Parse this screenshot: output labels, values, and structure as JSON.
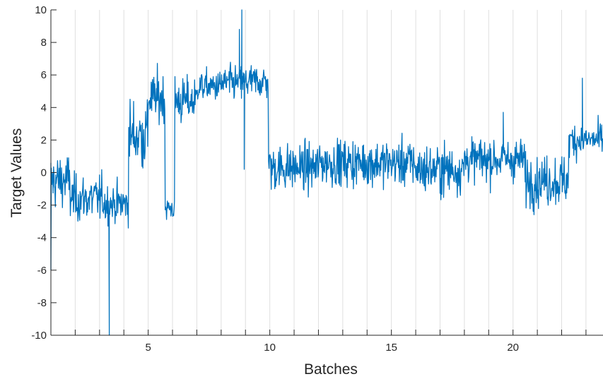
{
  "chart_data": {
    "type": "line",
    "xlabel": "Batches",
    "ylabel": "Target Values",
    "xlim": [
      1,
      23.7
    ],
    "ylim": [
      -10,
      10
    ],
    "xticks": [
      5,
      10,
      15,
      20
    ],
    "yticks": [
      -10,
      -8,
      -6,
      -4,
      -2,
      0,
      2,
      4,
      6,
      8,
      10
    ],
    "batch_boundaries": [
      2,
      3,
      4,
      5,
      6,
      7,
      8,
      9,
      10,
      11,
      12,
      13,
      14,
      15,
      16,
      17,
      18,
      19,
      20,
      21,
      22,
      23
    ],
    "grid": "vertical lines at batch boundaries",
    "line_color": "#0072BD",
    "series": [
      {
        "segments": [
          {
            "x_start": 1.0,
            "x_end": 1.8,
            "mean": -0.5,
            "noise": 1.4
          },
          {
            "x_start": 1.8,
            "x_end": 3.2,
            "mean": -1.6,
            "noise": 1.2
          },
          {
            "x_start": 3.2,
            "x_end": 4.2,
            "mean": -1.9,
            "noise": 1.0
          },
          {
            "x_start": 4.2,
            "x_end": 5.0,
            "mean": 2.3,
            "noise": 1.8
          },
          {
            "x_start": 5.0,
            "x_end": 5.7,
            "mean": 4.6,
            "noise": 1.3
          },
          {
            "x_start": 5.7,
            "x_end": 6.1,
            "mean": -2.2,
            "noise": 0.7
          },
          {
            "x_start": 6.1,
            "x_end": 7.0,
            "mean": 4.4,
            "noise": 1.2
          },
          {
            "x_start": 7.0,
            "x_end": 8.0,
            "mean": 5.3,
            "noise": 0.8
          },
          {
            "x_start": 8.0,
            "x_end": 9.0,
            "mean": 5.5,
            "noise": 0.9
          },
          {
            "x_start": 9.0,
            "x_end": 9.95,
            "mean": 5.6,
            "noise": 0.9
          },
          {
            "x_start": 9.95,
            "x_end": 12.0,
            "mean": 0.3,
            "noise": 1.2
          },
          {
            "x_start": 12.0,
            "x_end": 14.0,
            "mean": 0.6,
            "noise": 1.2
          },
          {
            "x_start": 14.0,
            "x_end": 16.0,
            "mean": 0.6,
            "noise": 1.2
          },
          {
            "x_start": 16.0,
            "x_end": 18.0,
            "mean": 0.2,
            "noise": 1.3
          },
          {
            "x_start": 18.0,
            "x_end": 20.5,
            "mean": 0.8,
            "noise": 1.1
          },
          {
            "x_start": 20.5,
            "x_end": 22.3,
            "mean": -0.5,
            "noise": 1.3
          },
          {
            "x_start": 22.3,
            "x_end": 23.7,
            "mean": 2.0,
            "noise": 0.9
          }
        ],
        "spikes": [
          {
            "x": 1.0,
            "y": -6.0
          },
          {
            "x": 3.4,
            "y": -10.0
          },
          {
            "x": 8.75,
            "y": 8.8
          },
          {
            "x": 8.85,
            "y": 10.0
          },
          {
            "x": 8.95,
            "y": 0.2
          },
          {
            "x": 19.6,
            "y": 3.7
          },
          {
            "x": 22.85,
            "y": 5.8
          }
        ]
      }
    ]
  }
}
